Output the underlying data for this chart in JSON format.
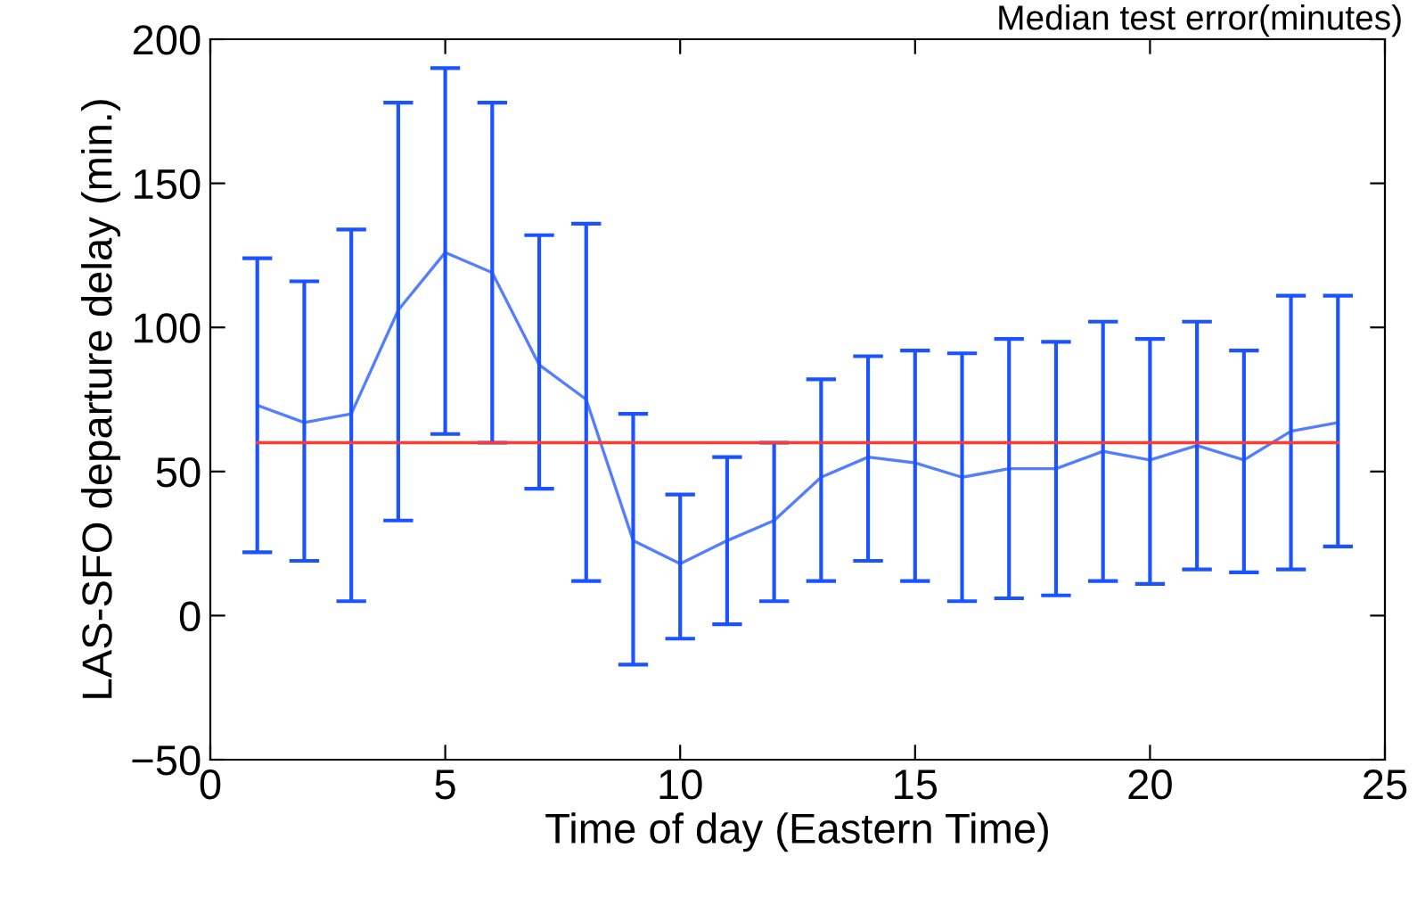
{
  "chart_data": {
    "type": "line",
    "title": "Median test error(minutes)",
    "xlabel": "Time of day (Eastern Time)",
    "ylabel": "LAS-SFO departure delay (min.)",
    "x": [
      1,
      2,
      3,
      4,
      5,
      6,
      7,
      8,
      9,
      10,
      11,
      12,
      13,
      14,
      15,
      16,
      17,
      18,
      19,
      20,
      21,
      22,
      23,
      24
    ],
    "series": [
      {
        "color": "#1a53ff",
        "values": [
          73,
          67,
          70,
          106,
          126,
          119,
          87,
          75,
          26,
          18,
          26,
          33,
          48,
          55,
          53,
          48,
          51,
          51,
          57,
          54,
          59,
          54,
          64,
          67
        ],
        "errors": [
          [
            22,
            124
          ],
          [
            19,
            116
          ],
          [
            5,
            134
          ],
          [
            33,
            178
          ],
          [
            63,
            190
          ],
          [
            60,
            178
          ],
          [
            44,
            132
          ],
          [
            12,
            136
          ],
          [
            -17,
            70
          ],
          [
            -8,
            42
          ],
          [
            -3,
            55
          ],
          [
            5,
            60
          ],
          [
            12,
            82
          ],
          [
            19,
            90
          ],
          [
            12,
            92
          ],
          [
            5,
            91
          ],
          [
            6,
            96
          ],
          [
            7,
            95
          ],
          [
            12,
            102
          ],
          [
            11,
            96
          ],
          [
            16,
            102
          ],
          [
            15,
            92
          ],
          [
            16,
            111
          ],
          [
            24,
            111
          ]
        ]
      }
    ],
    "ref_lines": [
      {
        "axis": "y",
        "value": 60,
        "color": "#ff3b2f",
        "line_style": "solid"
      }
    ],
    "xlim": [
      0,
      25
    ],
    "ylim": [
      -50,
      200
    ],
    "xticks": [
      0,
      5,
      10,
      15,
      20,
      25
    ],
    "yticks": [
      -50,
      0,
      50,
      100,
      150,
      200
    ],
    "grid": false,
    "legend": false,
    "marker": "none",
    "line_style": "solid"
  }
}
